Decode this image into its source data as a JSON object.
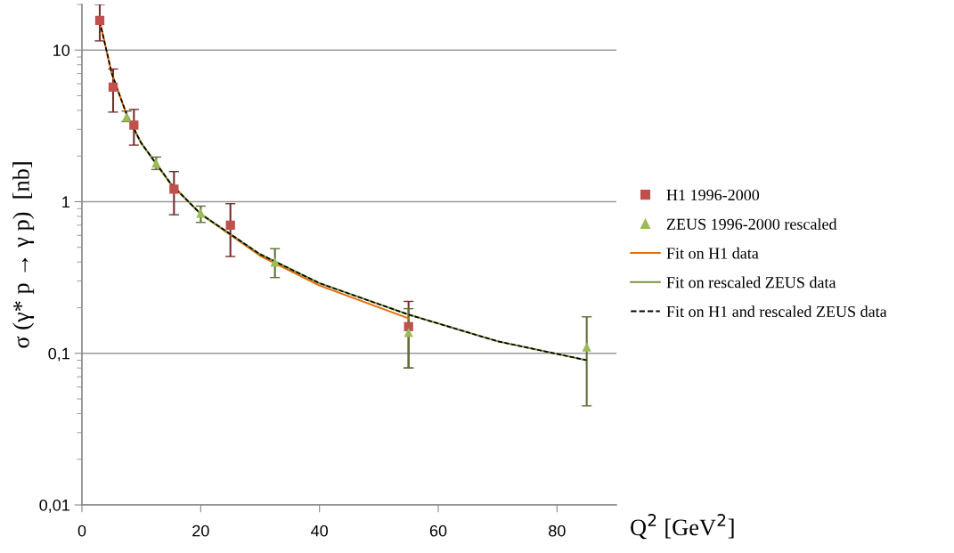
{
  "chart_data": {
    "type": "scatter",
    "xlabel": "Q$^{2}$ [GeV$^{2}$]",
    "ylabel": "σ (γ* p → γ p)  [nb]",
    "xlim": [
      0,
      90
    ],
    "xticks": [
      0,
      20,
      40,
      60,
      80
    ],
    "ylim": [
      0.01,
      20
    ],
    "yticks": [
      {
        "value": 0.01,
        "label": "0,01"
      },
      {
        "value": 0.1,
        "label": "0,1"
      },
      {
        "value": 1,
        "label": "1"
      },
      {
        "value": 10,
        "label": "10"
      }
    ],
    "log": "y",
    "grid": "y",
    "legend": "right",
    "series": [
      {
        "name": "H1 1996-2000",
        "marker": "square",
        "color": "#c0504d",
        "x": [
          3,
          5.25,
          8.75,
          15.5,
          25,
          55
        ],
        "values": [
          15.7,
          5.7,
          3.2,
          1.21,
          0.7,
          0.15
        ],
        "errors": [
          [
            11.5,
            20
          ],
          [
            3.9,
            7.5
          ],
          [
            2.36,
            4.06
          ],
          [
            0.82,
            1.58
          ],
          [
            0.435,
            0.97
          ],
          [
            0.08,
            0.22
          ]
        ]
      },
      {
        "name": "ZEUS 1996-2000 rescaled",
        "marker": "triangle",
        "color": "#9bbb59",
        "x": [
          7.5,
          12.5,
          20,
          32.5,
          55,
          85
        ],
        "values": [
          3.62,
          1.8,
          0.84,
          0.4,
          0.137,
          0.11
        ],
        "errors": [
          [
            3.38,
            3.96
          ],
          [
            1.63,
            1.97
          ],
          [
            0.73,
            0.935
          ],
          [
            0.316,
            0.49
          ],
          [
            0.08,
            0.197
          ],
          [
            0.045,
            0.174
          ]
        ]
      },
      {
        "name": "Fit on H1 data",
        "type": "line",
        "line_style": "solid",
        "color": "#e46c0a",
        "x": [
          3,
          5,
          7.5,
          10,
          15,
          20,
          30,
          40,
          55
        ],
        "values": [
          15.5,
          7.05,
          3.78,
          2.43,
          1.3,
          0.83,
          0.44,
          0.28,
          0.17
        ]
      },
      {
        "name": "Fit on rescaled ZEUS data",
        "type": "line",
        "line_style": "solid",
        "color": "#77933c",
        "x": [
          7.5,
          10,
          15,
          20,
          30,
          40,
          55,
          70,
          85
        ],
        "values": [
          3.78,
          2.43,
          1.31,
          0.83,
          0.45,
          0.29,
          0.18,
          0.12,
          0.09
        ]
      },
      {
        "name": "Fit on H1 and rescaled ZEUS data",
        "type": "line",
        "line_style": "dashed",
        "color": "#000000",
        "x": [
          3,
          5,
          7.5,
          10,
          15,
          20,
          30,
          40,
          55,
          70,
          85
        ],
        "values": [
          15.5,
          7.05,
          3.78,
          2.43,
          1.31,
          0.83,
          0.45,
          0.29,
          0.18,
          0.12,
          0.09
        ]
      }
    ]
  }
}
